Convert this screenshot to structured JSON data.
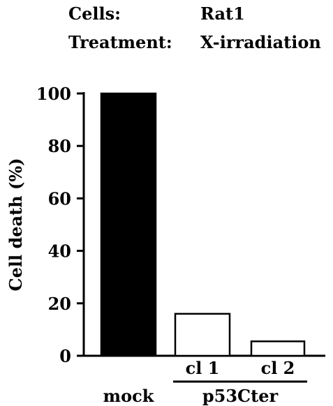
{
  "header": {
    "cells_label": "Cells:",
    "cells_value": "Rat1",
    "treatment_label": "Treatment:",
    "treatment_value": "X-irradiation"
  },
  "chart_data": {
    "type": "bar",
    "categories": [
      "mock",
      "cl 1",
      "cl 2"
    ],
    "values": [
      100,
      16,
      5.5
    ],
    "group_label": "p53Cter",
    "ylabel": "Cell death (%)",
    "ylim": [
      0,
      100
    ],
    "yticks": [
      0,
      20,
      40,
      60,
      80,
      100
    ],
    "grid": false,
    "bar_fills": [
      "#000000",
      "#ffffff",
      "#ffffff"
    ],
    "bar_stroke": "#000000"
  }
}
